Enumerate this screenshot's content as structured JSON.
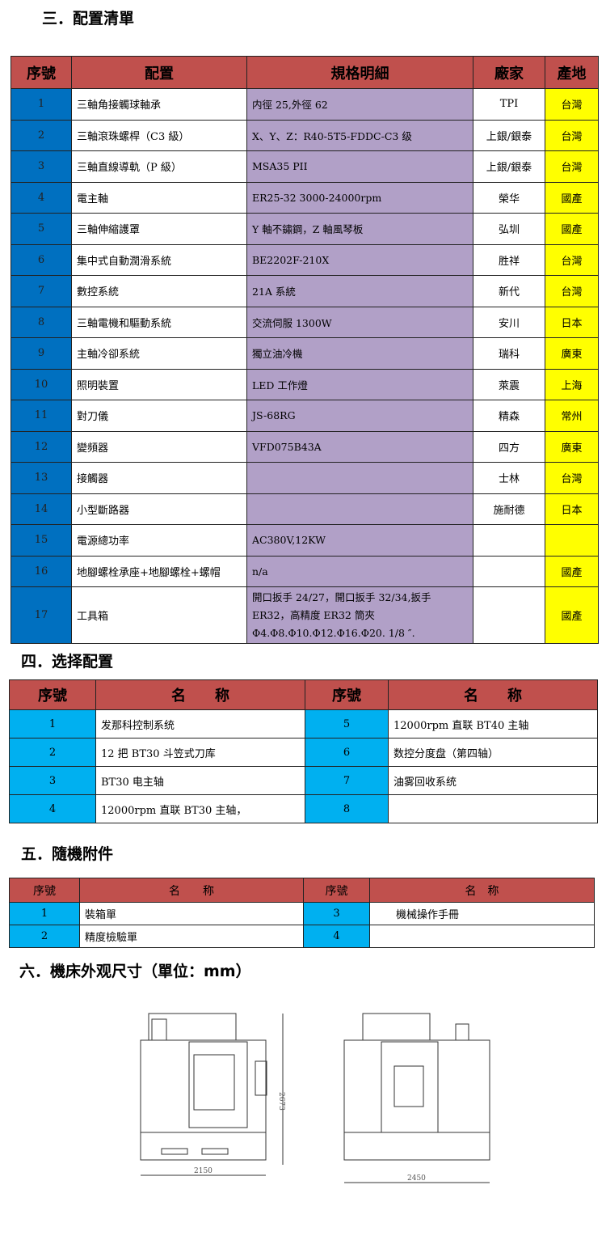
{
  "sec3": {
    "title": "三．配置清單",
    "headers": [
      "序號",
      "配置",
      "規格明細",
      "廠家",
      "產地"
    ],
    "rows": [
      [
        "1",
        "三軸角接觸球軸承",
        "内徑 25,外徑 62",
        "TPI",
        "台灣"
      ],
      [
        "2",
        "三軸滾珠螺桿（C3 級）",
        "X、Y、Z：R40-5T5-FDDC-C3 级",
        "上銀/銀泰",
        "台灣"
      ],
      [
        "3",
        "三軸直線導軌（P 級）",
        "MSA35 PII",
        "上銀/銀泰",
        "台灣"
      ],
      [
        "4",
        "電主軸",
        "ER25-32 3000-24000rpm",
        "榮华",
        "國產"
      ],
      [
        "5",
        "三軸伸縮護罩",
        "Y 軸不鏽鋼，Z 軸風琴板",
        "弘圳",
        "國產"
      ],
      [
        "6",
        "集中式自動潤滑系統",
        "BE2202F-210X",
        "胜祥",
        "台灣"
      ],
      [
        "7",
        "數控系統",
        "21A 系統",
        "新代",
        "台灣"
      ],
      [
        "8",
        "三軸電機和驅動系統",
        "交流伺服 1300W",
        "安川",
        "日本"
      ],
      [
        "9",
        "主軸冷卻系統",
        "獨立油冷機",
        "瑞科",
        "廣東"
      ],
      [
        "10",
        "照明裝置",
        "LED 工作燈",
        "萊震",
        "上海"
      ],
      [
        "11",
        "對刀儀",
        "JS-68RG",
        "精森",
        "常州"
      ],
      [
        "12",
        "變頻器",
        "VFD075B43A",
        "四方",
        "廣東"
      ],
      [
        "13",
        "接觸器",
        "",
        "士林",
        "台灣"
      ],
      [
        "14",
        "小型斷路器",
        "",
        "施耐德",
        "日本"
      ],
      [
        "15",
        "電源總功率",
        "AC380V,12KW",
        "",
        ""
      ],
      [
        "16",
        "地腳螺栓承座+地腳螺栓+螺帽",
        "n/a",
        "",
        "國產"
      ],
      [
        "17",
        "工具箱",
        "開口扳手 24/27，開口扳手 32/34,扳手 ER32，高精度 ER32 筒夾Φ4.Φ8.Φ10.Φ12.Φ16.Φ20. 1/8 ″.",
        "",
        "國產"
      ]
    ]
  },
  "sec4": {
    "title": "四．选择配置",
    "headers": [
      "序號",
      "名　　称",
      "序號",
      "名　　称"
    ],
    "rows": [
      [
        "1",
        "发那科控制系统",
        "5",
        "12000rpm 直联 BT40 主轴"
      ],
      [
        "2",
        "12 把 BT30 斗笠式刀库",
        "6",
        "数控分度盘（第四轴）"
      ],
      [
        "3",
        "BT30 电主轴",
        "7",
        "油雾回收系统"
      ],
      [
        "4",
        "12000rpm 直联 BT30 主轴，",
        "8",
        ""
      ]
    ]
  },
  "sec5": {
    "title": "五．隨機附件",
    "headers": [
      "序號",
      "名　　称",
      "序號",
      "名　称"
    ],
    "rows": [
      [
        "1",
        "裝箱單",
        "3",
        "　　機械操作手冊"
      ],
      [
        "2",
        "精度檢驗單",
        "4",
        ""
      ]
    ]
  },
  "sec6": {
    "title": "六．機床外观尺寸（單位：mm）",
    "front_width": "2150",
    "height": "2673",
    "side_width": "2450"
  },
  "colors": {
    "header": "#c0504d",
    "index_blue": "#0070c0",
    "index_light_blue": "#00b0f0",
    "spec_purple": "#b1a0c7",
    "origin_yellow": "#ffff00"
  }
}
